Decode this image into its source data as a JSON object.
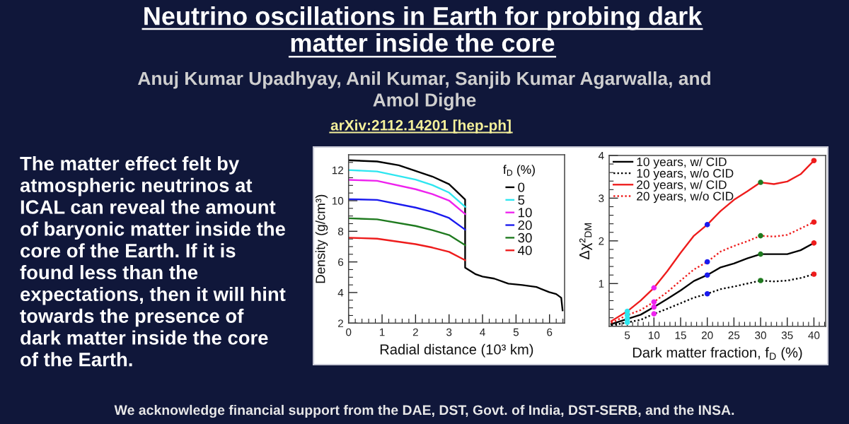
{
  "chart_data": [
    {
      "type": "other",
      "title": "Neutrino oscillations in Earth for probing dark\nmatter inside the core",
      "subtitle": "Anuj Kumar Upadhyay, Anil Kumar, Sanjib Kumar Agarwalla, and\nAmol Dighe",
      "annotations": [
        "arXiv:2112.14201 [hep-ph]",
        "The matter effect felt by\natmospheric neutrinos at\nICAL can reveal the amount\nof baryonic matter inside the\ncore of the Earth. If it is\nfound less than the\nexpectations, then it will hint\ntowards the presence of\ndark matter inside the core\nof the Earth.",
        "We acknowledge financial support from the DAE, DST, Govt. of India, DST-SERB, and the INSA."
      ]
    },
    {
      "type": "line",
      "xlabel": "Radial distance (10³ km)",
      "ylabel": "Density (g/cm³)",
      "legend_title": "f$_{D}$ (%)",
      "legend": "top right",
      "xlim": [
        0,
        6.45
      ],
      "ylim": [
        2,
        13
      ],
      "xticks": [
        0,
        1,
        2,
        3,
        4,
        5,
        6,
        {
          "value": 0.2,
          "label": null
        },
        {
          "value": 0.4,
          "label": null
        },
        {
          "value": 0.6,
          "label": null
        },
        {
          "value": 0.8,
          "label": null
        },
        {
          "value": 1.2,
          "label": null
        },
        {
          "value": 1.4,
          "label": null
        },
        {
          "value": 1.6,
          "label": null
        },
        {
          "value": 1.8,
          "label": null
        },
        {
          "value": 2.2,
          "label": null
        },
        {
          "value": 2.4,
          "label": null
        },
        {
          "value": 2.6,
          "label": null
        },
        {
          "value": 2.8,
          "label": null
        },
        {
          "value": 3.2,
          "label": null
        },
        {
          "value": 3.4,
          "label": null
        },
        {
          "value": 3.6,
          "label": null
        },
        {
          "value": 3.8,
          "label": null
        },
        {
          "value": 4.2,
          "label": null
        },
        {
          "value": 4.4,
          "label": null
        },
        {
          "value": 4.6,
          "label": null
        },
        {
          "value": 4.8,
          "label": null
        },
        {
          "value": 5.2,
          "label": null
        },
        {
          "value": 5.4,
          "label": null
        },
        {
          "value": 5.6,
          "label": null
        },
        {
          "value": 5.8,
          "label": null
        },
        {
          "value": 6.2,
          "label": null
        },
        {
          "value": 6.4,
          "label": null
        }
      ],
      "yticks": [
        2,
        4,
        6,
        8,
        10,
        12,
        {
          "value": 2.5,
          "label": null
        },
        {
          "value": 3,
          "label": null
        },
        {
          "value": 3.5,
          "label": null
        },
        {
          "value": 4.5,
          "label": null
        },
        {
          "value": 5,
          "label": null
        },
        {
          "value": 5.5,
          "label": null
        },
        {
          "value": 6.5,
          "label": null
        },
        {
          "value": 7,
          "label": null
        },
        {
          "value": 7.5,
          "label": null
        },
        {
          "value": 8.5,
          "label": null
        },
        {
          "value": 9,
          "label": null
        },
        {
          "value": 9.5,
          "label": null
        },
        {
          "value": 10.5,
          "label": null
        },
        {
          "value": 11,
          "label": null
        },
        {
          "value": 11.5,
          "label": null
        },
        {
          "value": 12.5,
          "label": null
        }
      ],
      "x": [
        0,
        0.85,
        2,
        2.5,
        3.0,
        3.48
      ],
      "series": [
        {
          "name": "0",
          "color": "#000000",
          "x": [
            0,
            0.85,
            1.5,
            2,
            2.5,
            3.0,
            3.2,
            3.48,
            3.48,
            3.8,
            4.0,
            4.35,
            4.77,
            5.19,
            5.61,
            5.99,
            6.2,
            6.35,
            6.39
          ],
          "values": [
            12.64,
            12.56,
            12.31,
            11.94,
            11.58,
            11.08,
            10.66,
            10.07,
            5.63,
            5.19,
            5.04,
            4.91,
            4.58,
            4.49,
            4.36,
            4.03,
            3.9,
            3.66,
            2.83
          ]
        },
        {
          "name": "5",
          "color": "#2ee6f0",
          "values": [
            12.0,
            11.91,
            11.38,
            11.02,
            10.53,
            9.6
          ]
        },
        {
          "name": "10",
          "color": "#ee22ee",
          "values": [
            11.36,
            11.3,
            10.75,
            10.43,
            10.01,
            9.13
          ]
        },
        {
          "name": "20",
          "color": "#1a1aee",
          "values": [
            10.1,
            10.05,
            9.55,
            9.27,
            8.87,
            8.11
          ]
        },
        {
          "name": "30",
          "color": "#1f7a1f",
          "values": [
            8.85,
            8.78,
            8.35,
            8.08,
            7.76,
            7.1
          ]
        },
        {
          "name": "40",
          "color": "#ee1c1c",
          "values": [
            7.58,
            7.52,
            7.16,
            6.94,
            6.66,
            6.11
          ]
        }
      ]
    },
    {
      "type": "line",
      "xlabel": "Dark matter fraction, f$_{D}$ (%)",
      "ylabel": "Δχ²$_{DM}$",
      "legend": "top left",
      "xlim": [
        1.6,
        42.2
      ],
      "ylim": [
        0,
        4
      ],
      "xticks": [
        5,
        10,
        15,
        20,
        25,
        30,
        35,
        40,
        {
          "value": 2,
          "label": null
        },
        {
          "value": 3,
          "label": null
        },
        {
          "value": 4,
          "label": null
        },
        {
          "value": 6,
          "label": null
        },
        {
          "value": 7,
          "label": null
        },
        {
          "value": 8,
          "label": null
        },
        {
          "value": 9,
          "label": null
        },
        {
          "value": 11,
          "label": null
        },
        {
          "value": 12,
          "label": null
        },
        {
          "value": 13,
          "label": null
        },
        {
          "value": 14,
          "label": null
        },
        {
          "value": 16,
          "label": null
        },
        {
          "value": 17,
          "label": null
        },
        {
          "value": 18,
          "label": null
        },
        {
          "value": 19,
          "label": null
        },
        {
          "value": 21,
          "label": null
        },
        {
          "value": 22,
          "label": null
        },
        {
          "value": 23,
          "label": null
        },
        {
          "value": 24,
          "label": null
        },
        {
          "value": 26,
          "label": null
        },
        {
          "value": 27,
          "label": null
        },
        {
          "value": 28,
          "label": null
        },
        {
          "value": 29,
          "label": null
        },
        {
          "value": 31,
          "label": null
        },
        {
          "value": 32,
          "label": null
        },
        {
          "value": 33,
          "label": null
        },
        {
          "value": 34,
          "label": null
        },
        {
          "value": 36,
          "label": null
        },
        {
          "value": 37,
          "label": null
        },
        {
          "value": 38,
          "label": null
        },
        {
          "value": 39,
          "label": null
        },
        {
          "value": 41,
          "label": null
        },
        {
          "value": 42,
          "label": null
        }
      ],
      "yticks": [
        1,
        2,
        3,
        4,
        {
          "value": 0.2,
          "label": null
        },
        {
          "value": 0.4,
          "label": null
        },
        {
          "value": 0.6,
          "label": null
        },
        {
          "value": 0.8,
          "label": null
        },
        {
          "value": 1.2,
          "label": null
        },
        {
          "value": 1.4,
          "label": null
        },
        {
          "value": 1.6,
          "label": null
        },
        {
          "value": 1.8,
          "label": null
        },
        {
          "value": 2.2,
          "label": null
        },
        {
          "value": 2.4,
          "label": null
        },
        {
          "value": 2.6,
          "label": null
        },
        {
          "value": 2.8,
          "label": null
        },
        {
          "value": 3.2,
          "label": null
        },
        {
          "value": 3.4,
          "label": null
        },
        {
          "value": 3.6,
          "label": null
        },
        {
          "value": 3.8,
          "label": null
        }
      ],
      "x": [
        2,
        5,
        7.5,
        10,
        12.5,
        15,
        17.5,
        20,
        22.5,
        25,
        27.5,
        30,
        32.5,
        35,
        37.5,
        40
      ],
      "series": [
        {
          "name": "10 years, w/ CID",
          "color": "#000000",
          "values": [
            0.05,
            0.17,
            0.27,
            0.45,
            0.64,
            0.84,
            1.06,
            1.2,
            1.38,
            1.47,
            1.59,
            1.69,
            1.69,
            1.69,
            1.78,
            1.95
          ]
        },
        {
          "name": "10 years, w/o CID",
          "color": "#000000",
          "line_style": "dotted",
          "values": [
            0.02,
            0.09,
            0.15,
            0.29,
            0.41,
            0.54,
            0.67,
            0.76,
            0.87,
            0.93,
            1.0,
            1.07,
            1.05,
            1.07,
            1.13,
            1.22
          ]
        },
        {
          "name": "20 years, w/ CID",
          "color": "#ee1c1c",
          "values": [
            0.12,
            0.35,
            0.6,
            0.9,
            1.29,
            1.72,
            2.12,
            2.38,
            2.7,
            2.96,
            3.16,
            3.37,
            3.33,
            3.39,
            3.56,
            3.88
          ]
        },
        {
          "name": "20 years, w/o CID",
          "color": "#ee1c1c",
          "line_style": "dotted",
          "values": [
            0.08,
            0.26,
            0.38,
            0.57,
            0.8,
            1.07,
            1.33,
            1.51,
            1.75,
            1.88,
            1.99,
            2.12,
            2.1,
            2.14,
            2.29,
            2.44
          ]
        },
        {
          "type": "scatter",
          "marker": "circle",
          "x": [
            5,
            5,
            5,
            5,
            10,
            10,
            10,
            10,
            20,
            20,
            20,
            20,
            30,
            30,
            30,
            30,
            40,
            40,
            40,
            40
          ],
          "values": [
            0.17,
            0.09,
            0.35,
            0.26,
            0.45,
            0.29,
            0.9,
            0.57,
            1.2,
            0.76,
            2.38,
            1.51,
            1.69,
            1.07,
            3.37,
            2.12,
            1.95,
            1.22,
            3.88,
            2.44
          ],
          "colors": [
            "#2ee6f0",
            "#2ee6f0",
            "#2ee6f0",
            "#2ee6f0",
            "#ee22ee",
            "#ee22ee",
            "#ee22ee",
            "#ee22ee",
            "#1a1aee",
            "#1a1aee",
            "#1a1aee",
            "#1a1aee",
            "#1f7a1f",
            "#1f7a1f",
            "#1f7a1f",
            "#1f7a1f",
            "#ee1c1c",
            "#ee1c1c",
            "#ee1c1c",
            "#ee1c1c"
          ]
        }
      ]
    }
  ]
}
